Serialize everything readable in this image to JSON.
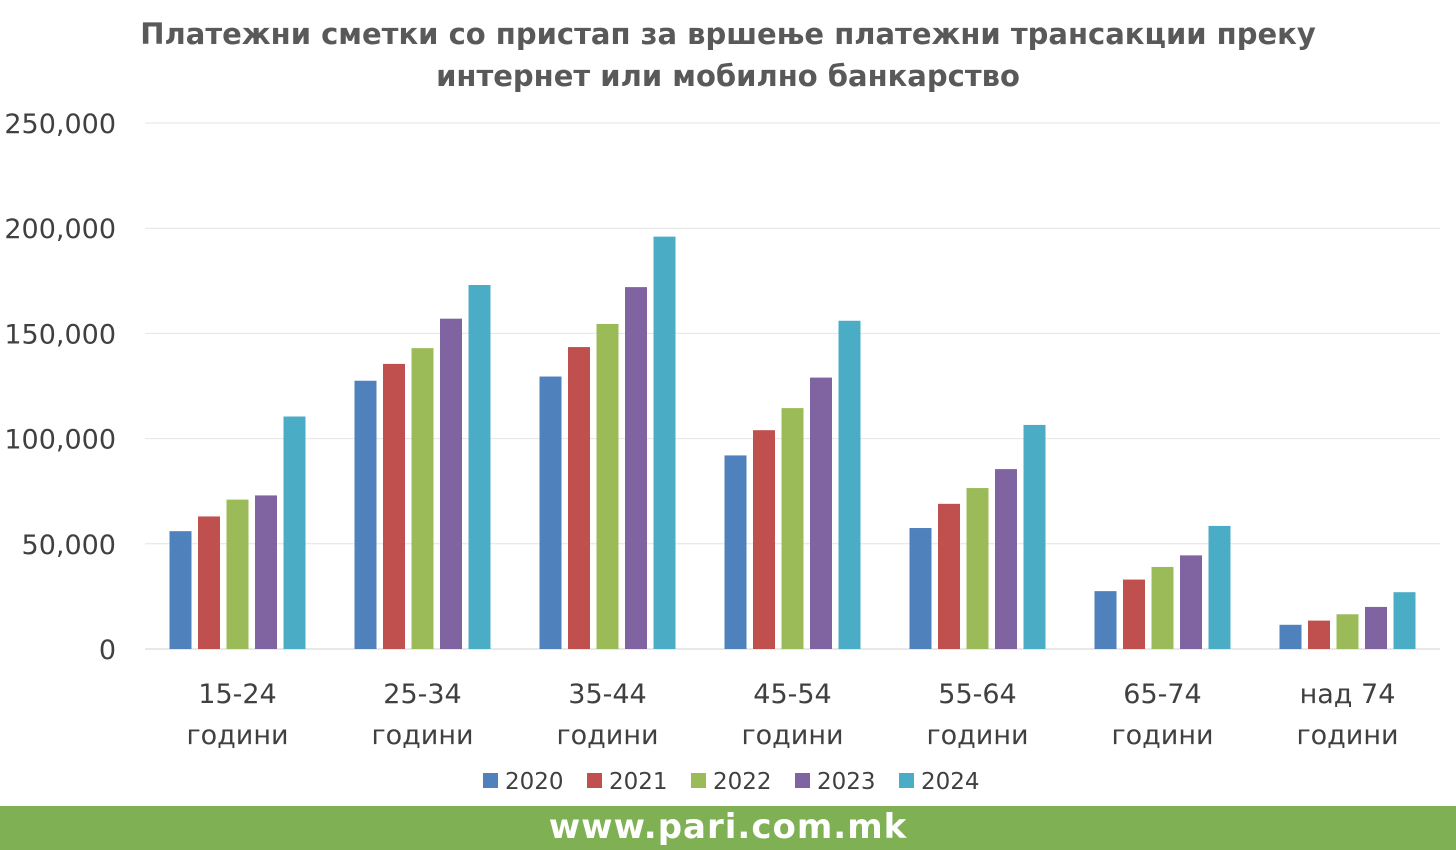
{
  "chart_data": {
    "type": "bar",
    "title_lines": [
      "Платежни сметки со пристап за вршење платежни трансакции преку",
      "интернет или мобилно банкарство"
    ],
    "categories": [
      [
        "15-24",
        "години"
      ],
      [
        "25-34",
        "години"
      ],
      [
        "35-44",
        "години"
      ],
      [
        "45-54",
        "години"
      ],
      [
        "55-64",
        "години"
      ],
      [
        "65-74",
        "години"
      ],
      [
        "над 74",
        "години"
      ]
    ],
    "series": [
      {
        "name": "2020",
        "color": "#4f81bd",
        "values": [
          56000,
          127500,
          129500,
          92000,
          57500,
          27500,
          11500
        ]
      },
      {
        "name": "2021",
        "color": "#c0504d",
        "values": [
          63000,
          135500,
          143500,
          104000,
          69000,
          33000,
          13500
        ]
      },
      {
        "name": "2022",
        "color": "#9bbb59",
        "values": [
          71000,
          143000,
          154500,
          114500,
          76500,
          39000,
          16500
        ]
      },
      {
        "name": "2023",
        "color": "#8064a2",
        "values": [
          73000,
          157000,
          172000,
          129000,
          85500,
          44500,
          20000
        ]
      },
      {
        "name": "2024",
        "color": "#4bacc6",
        "values": [
          110500,
          173000,
          196000,
          156000,
          106500,
          58500,
          27000
        ]
      }
    ],
    "y_ticks": [
      "0",
      "50,000",
      "100,000",
      "150,000",
      "200,000",
      "250,000"
    ],
    "ylim": [
      0,
      250000
    ],
    "grid": true,
    "legend_position": "bottom"
  },
  "footer": {
    "text": "www.pari.com.mk",
    "color": "#7fb054"
  }
}
